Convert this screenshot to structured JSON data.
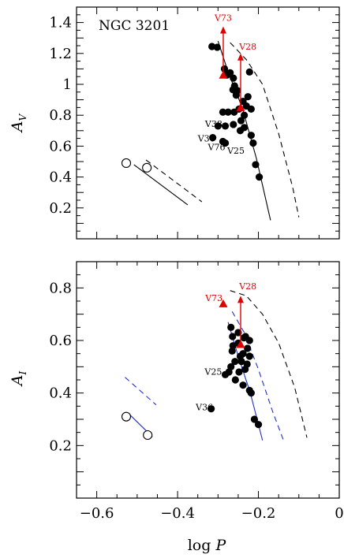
{
  "xlabel": {
    "main": "log ",
    "italic": "P"
  },
  "chart_data": [
    {
      "type": "scatter",
      "title": "NGC 3201",
      "ylabel": {
        "main": "A",
        "sub": "V"
      },
      "xlim": [
        -0.65,
        0
      ],
      "ylim": [
        0,
        1.5
      ],
      "xticks": [
        -0.6,
        -0.4,
        -0.2,
        0
      ],
      "yticks": [
        0.2,
        0.4,
        0.6,
        0.8,
        1,
        1.2,
        1.4
      ],
      "ytick_labels": [
        "0.2",
        "0.4",
        "0.6",
        "0.8",
        "1",
        "1.2",
        "1.4"
      ],
      "colors": {
        "accent": "#e00000",
        "ink": "#000000"
      },
      "filled_points": [
        [
          -0.315,
          1.245
        ],
        [
          -0.302,
          1.24
        ],
        [
          -0.284,
          1.1
        ],
        [
          -0.278,
          1.06
        ],
        [
          -0.27,
          1.075
        ],
        [
          -0.262,
          1.04
        ],
        [
          -0.259,
          0.99
        ],
        [
          -0.263,
          0.965
        ],
        [
          -0.252,
          0.96
        ],
        [
          -0.255,
          0.93
        ],
        [
          -0.238,
          0.89
        ],
        [
          -0.222,
          1.08
        ],
        [
          -0.226,
          0.92
        ],
        [
          -0.248,
          0.84
        ],
        [
          -0.23,
          0.86
        ],
        [
          -0.218,
          0.84
        ],
        [
          -0.235,
          0.8
        ],
        [
          -0.26,
          0.82
        ],
        [
          -0.288,
          0.82
        ],
        [
          -0.275,
          0.82
        ],
        [
          -0.243,
          0.765
        ],
        [
          -0.262,
          0.74
        ],
        [
          -0.282,
          0.73
        ],
        [
          -0.3,
          0.73
        ],
        [
          -0.235,
          0.72
        ],
        [
          -0.245,
          0.7
        ],
        [
          -0.218,
          0.67
        ],
        [
          -0.288,
          0.63
        ],
        [
          -0.282,
          0.62
        ],
        [
          -0.313,
          0.655
        ],
        [
          -0.213,
          0.62
        ],
        [
          -0.207,
          0.48
        ],
        [
          -0.198,
          0.4
        ]
      ],
      "open_points": [
        [
          -0.527,
          0.49
        ],
        [
          -0.476,
          0.46
        ]
      ],
      "lines": [
        {
          "style": "solid",
          "points": [
            [
              -0.508,
              0.48
            ],
            [
              -0.375,
              0.22
            ]
          ]
        },
        {
          "style": "dashed",
          "points": [
            [
              -0.478,
              0.51
            ],
            [
              -0.34,
              0.24
            ]
          ]
        },
        {
          "style": "solid",
          "points": [
            [
              -0.3,
              1.28
            ],
            [
              -0.275,
              1.08
            ],
            [
              -0.24,
              0.85
            ],
            [
              -0.205,
              0.52
            ],
            [
              -0.17,
              0.12
            ]
          ]
        },
        {
          "style": "dashed",
          "points": [
            [
              -0.27,
              1.27
            ],
            [
              -0.23,
              1.16
            ],
            [
              -0.19,
              1.0
            ],
            [
              -0.15,
              0.68
            ],
            [
              -0.115,
              0.33
            ],
            [
              -0.1,
              0.14
            ]
          ]
        }
      ],
      "arrows": [
        {
          "x": -0.287,
          "y0": 1.06,
          "y1": 1.375
        },
        {
          "x": -0.244,
          "y0": 0.85,
          "y1": 1.2
        }
      ],
      "triangles": [
        {
          "x": -0.287,
          "y": 1.06
        },
        {
          "x": -0.244,
          "y": 0.85
        }
      ],
      "red_labels": [
        {
          "text": "V73",
          "x": -0.287,
          "y": 1.41,
          "anchor": "middle"
        },
        {
          "text": "V28",
          "x": -0.226,
          "y": 1.225,
          "anchor": "middle"
        }
      ],
      "star_labels": [
        {
          "text": "V38",
          "x": -0.332,
          "y": 0.725,
          "anchor": "start"
        },
        {
          "text": "V36",
          "x": -0.35,
          "y": 0.63,
          "anchor": "start"
        },
        {
          "text": "V76",
          "x": -0.325,
          "y": 0.575,
          "anchor": "start"
        },
        {
          "text": "V25",
          "x": -0.277,
          "y": 0.55,
          "anchor": "start"
        }
      ]
    },
    {
      "type": "scatter",
      "title": "",
      "ylabel": {
        "main": "A",
        "sub": "I"
      },
      "xlim": [
        -0.65,
        0
      ],
      "ylim": [
        0,
        0.9
      ],
      "xticks": [
        -0.6,
        -0.4,
        -0.2,
        0
      ],
      "yticks": [
        0.2,
        0.4,
        0.6,
        0.8
      ],
      "ytick_labels": [
        "0.2",
        "0.4",
        "0.6",
        "0.8"
      ],
      "colors": {
        "accent": "#e00000",
        "ink": "#000000",
        "fit": "#1f2fc9"
      },
      "filled_points": [
        [
          -0.268,
          0.65
        ],
        [
          -0.25,
          0.63
        ],
        [
          -0.264,
          0.615
        ],
        [
          -0.236,
          0.61
        ],
        [
          -0.232,
          0.615
        ],
        [
          -0.25,
          0.59
        ],
        [
          -0.222,
          0.6
        ],
        [
          -0.263,
          0.58
        ],
        [
          -0.265,
          0.56
        ],
        [
          -0.227,
          0.57
        ],
        [
          -0.238,
          0.55
        ],
        [
          -0.245,
          0.54
        ],
        [
          -0.222,
          0.54
        ],
        [
          -0.258,
          0.52
        ],
        [
          -0.242,
          0.52
        ],
        [
          -0.228,
          0.51
        ],
        [
          -0.268,
          0.5
        ],
        [
          -0.233,
          0.49
        ],
        [
          -0.248,
          0.48
        ],
        [
          -0.273,
          0.48
        ],
        [
          -0.282,
          0.47
        ],
        [
          -0.257,
          0.45
        ],
        [
          -0.238,
          0.43
        ],
        [
          -0.222,
          0.41
        ],
        [
          -0.218,
          0.4
        ],
        [
          -0.317,
          0.34
        ],
        [
          -0.21,
          0.3
        ],
        [
          -0.2,
          0.28
        ]
      ],
      "open_points": [
        [
          -0.527,
          0.31
        ],
        [
          -0.474,
          0.24
        ]
      ],
      "lines": [
        {
          "style": "solid",
          "color": "fit",
          "points": [
            [
              -0.52,
              0.32
            ],
            [
              -0.462,
              0.233
            ]
          ]
        },
        {
          "style": "dashed",
          "color": "fit",
          "points": [
            [
              -0.53,
              0.46
            ],
            [
              -0.453,
              0.355
            ]
          ]
        },
        {
          "style": "solid",
          "color": "fit",
          "points": [
            [
              -0.275,
              0.67
            ],
            [
              -0.25,
              0.54
            ],
            [
              -0.22,
              0.4
            ],
            [
              -0.19,
              0.22
            ]
          ]
        },
        {
          "style": "dashed",
          "color": "fit",
          "points": [
            [
              -0.265,
              0.71
            ],
            [
              -0.235,
              0.63
            ],
            [
              -0.2,
              0.49
            ],
            [
              -0.165,
              0.33
            ],
            [
              -0.138,
              0.22
            ]
          ]
        },
        {
          "style": "dashed",
          "color": "ink",
          "points": [
            [
              -0.27,
              0.79
            ],
            [
              -0.23,
              0.77
            ],
            [
              -0.19,
              0.7
            ],
            [
              -0.15,
              0.59
            ],
            [
              -0.11,
              0.42
            ],
            [
              -0.08,
              0.23
            ]
          ]
        }
      ],
      "arrows": [
        {
          "x": -0.244,
          "y0": 0.59,
          "y1": 0.77
        }
      ],
      "triangles": [
        {
          "x": -0.287,
          "y": 0.74
        },
        {
          "x": -0.244,
          "y": 0.585
        }
      ],
      "red_labels": [
        {
          "text": "V73",
          "x": -0.31,
          "y": 0.75,
          "anchor": "middle"
        },
        {
          "text": "V28",
          "x": -0.226,
          "y": 0.795,
          "anchor": "middle"
        }
      ],
      "star_labels": [
        {
          "text": "V25",
          "x": -0.333,
          "y": 0.47,
          "anchor": "start"
        },
        {
          "text": "V36",
          "x": -0.355,
          "y": 0.335,
          "anchor": "start"
        }
      ]
    }
  ]
}
